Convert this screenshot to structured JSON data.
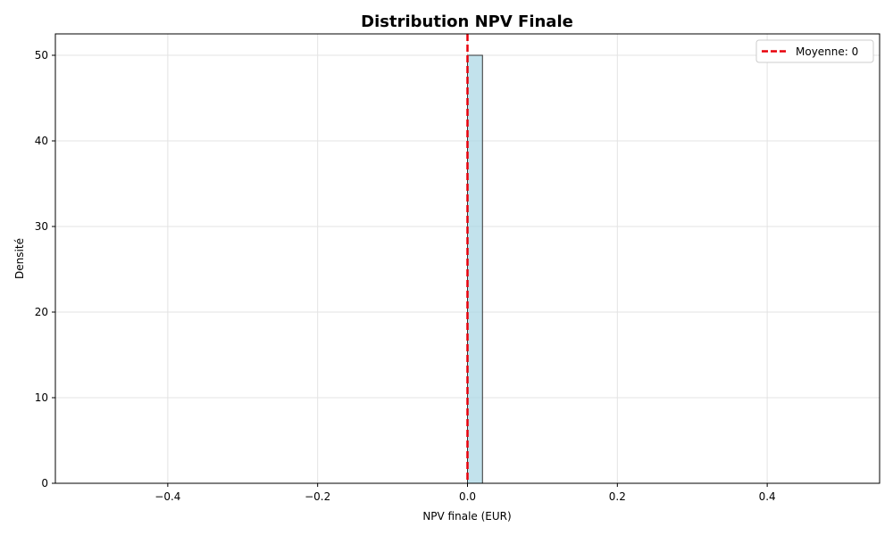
{
  "chart_data": {
    "type": "histogram",
    "title": "Distribution NPV Finale",
    "xlabel": "NPV finale (EUR)",
    "ylabel": "Densité",
    "xlim": [
      -0.55,
      0.55
    ],
    "ylim": [
      0,
      52.5
    ],
    "xticks": [
      -0.4,
      -0.2,
      0.0,
      0.2,
      0.4
    ],
    "xtick_labels": [
      "−0.4",
      "−0.2",
      "0.0",
      "0.2",
      "0.4"
    ],
    "yticks": [
      0,
      10,
      20,
      30,
      40,
      50
    ],
    "ytick_labels": [
      "0",
      "10",
      "20",
      "30",
      "40",
      "50"
    ],
    "bins": [
      {
        "x0": 0.0,
        "x1": 0.02,
        "value": 50
      }
    ],
    "baseline_range": [
      -0.5,
      0.5
    ],
    "mean_line": {
      "x": 0,
      "label": "Moyenne: 0",
      "color": "#e8000b",
      "style": "dashed"
    },
    "grid": true,
    "legend_position": "top-right",
    "bar_fill": "#add8e6",
    "bar_edge": "#333333"
  }
}
